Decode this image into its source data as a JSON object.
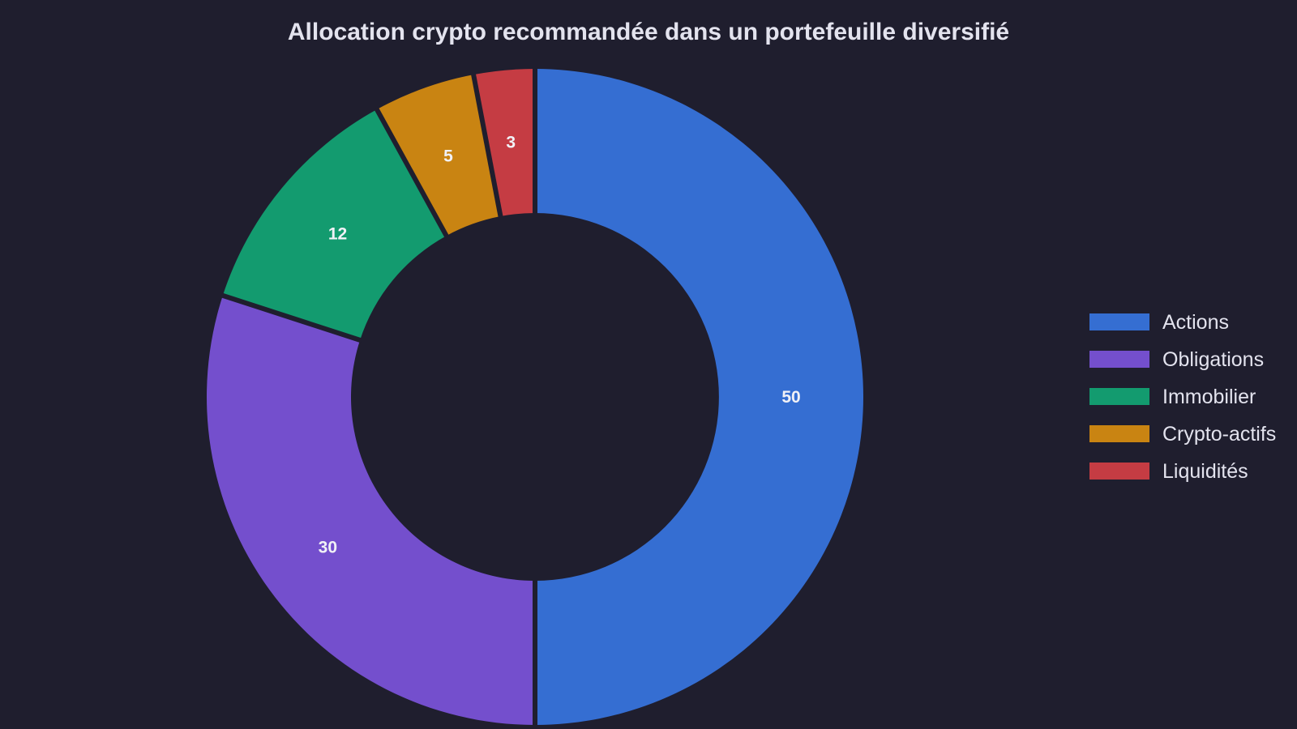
{
  "chart_data": {
    "type": "pie",
    "title": "Allocation crypto recommandée dans un portefeuille diversifié",
    "categories": [
      "Actions",
      "Obligations",
      "Immobilier",
      "Crypto-actifs",
      "Liquidités"
    ],
    "values": [
      50,
      30,
      12,
      5,
      3
    ],
    "colors": [
      "#356ed2",
      "#744fcd",
      "#139b6f",
      "#c98412",
      "#c53c43"
    ],
    "hole": true,
    "data_labels": [
      "50",
      "30",
      "12",
      "5",
      "3"
    ],
    "legend": {
      "position": "right",
      "entries": [
        "Actions",
        "Obligations",
        "Immobilier",
        "Crypto-actifs",
        "Liquidités"
      ]
    },
    "background_color": "#1f1e2e"
  }
}
